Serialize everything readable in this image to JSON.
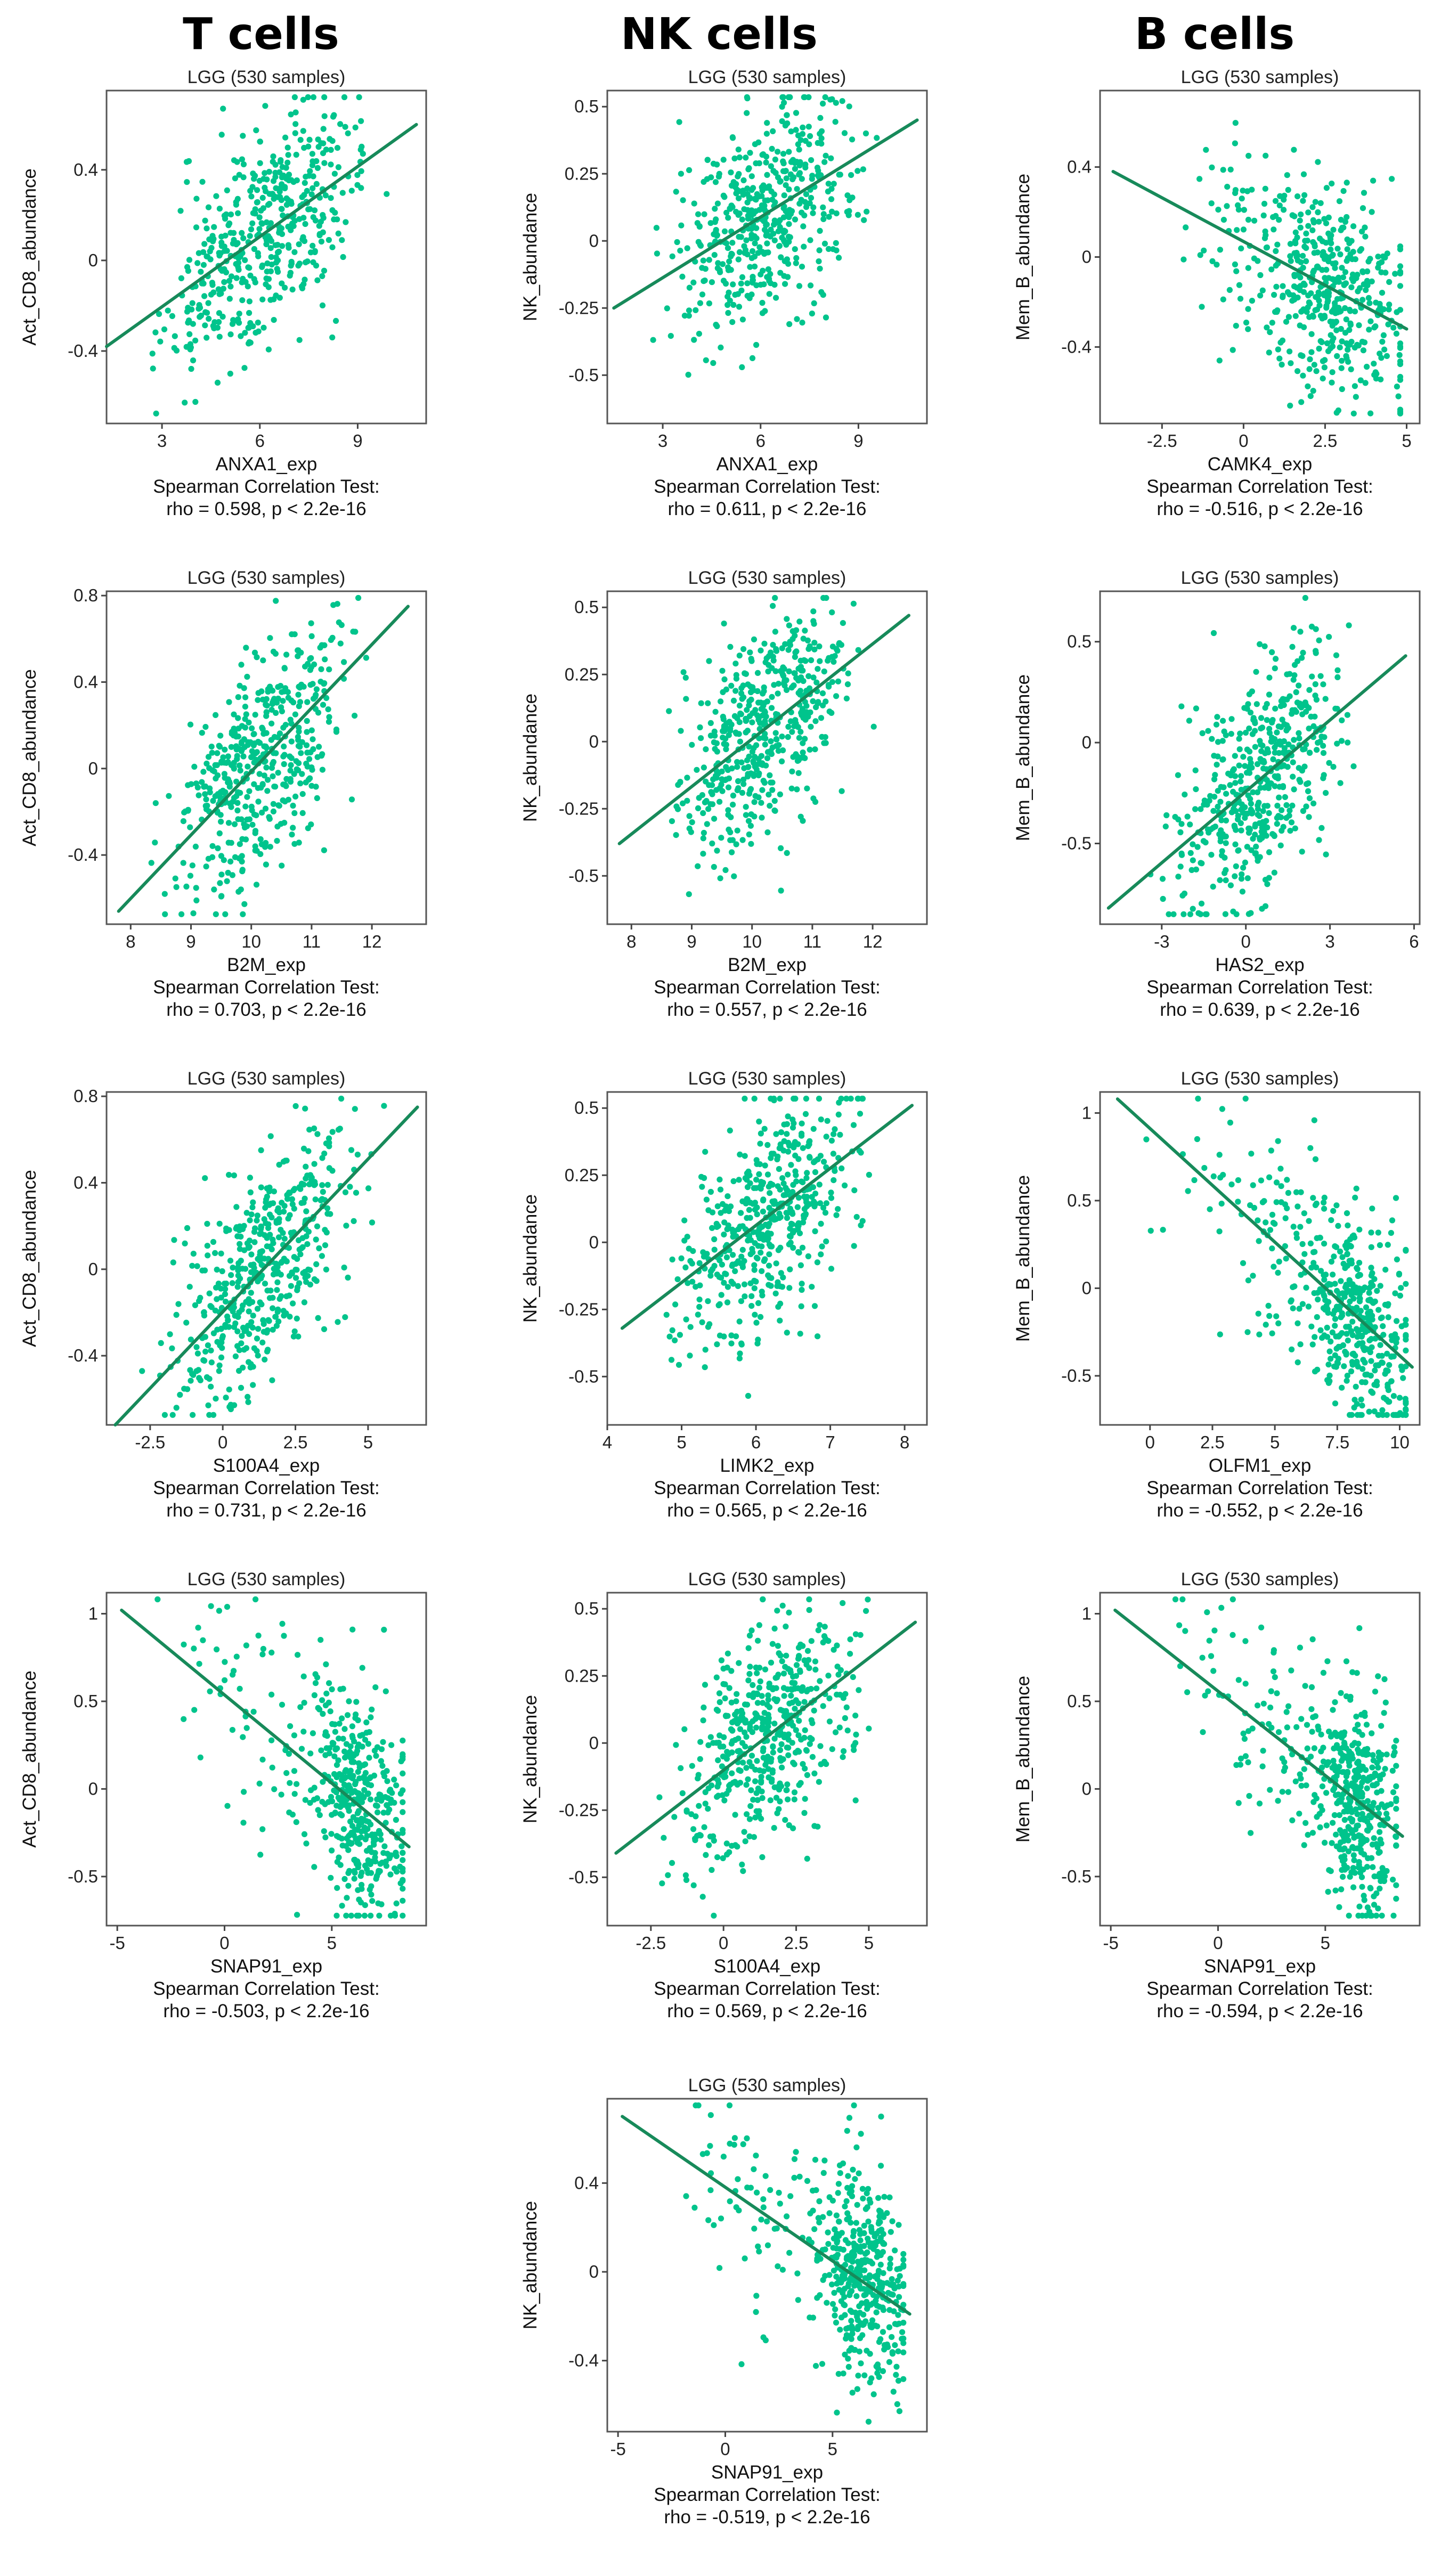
{
  "colors": {
    "point": "#00c48c",
    "line": "#178a5a",
    "frame": "#555555"
  },
  "headers": {
    "t": "T cells",
    "nk": "NK cells",
    "b": "B cells"
  },
  "stat_title": "Spearman Correlation Test:",
  "chart_data": [
    {
      "id": "t1",
      "type": "scatter",
      "title": "LGG (530 samples)",
      "xlabel": "ANXA1_exp",
      "ylabel": "Act_CD8_abundance",
      "xlim": [
        1.3,
        11.1
      ],
      "ylim": [
        -0.72,
        0.75
      ],
      "xticks": [
        3,
        6,
        9
      ],
      "yticks": [
        -0.4,
        0.0,
        0.4
      ],
      "fit": [
        [
          1.3,
          -0.38
        ],
        [
          10.8,
          0.6
        ]
      ],
      "n": 480,
      "seed": 11,
      "stat": "rho = 0.598, p < 2.2e-16"
    },
    {
      "id": "nk1",
      "type": "scatter",
      "title": "LGG (530 samples)",
      "xlabel": "ANXA1_exp",
      "ylabel": "NK_abundance",
      "xlim": [
        1.3,
        11.1
      ],
      "ylim": [
        -0.68,
        0.56
      ],
      "xticks": [
        3,
        6,
        9
      ],
      "yticks": [
        -0.5,
        -0.25,
        0.0,
        0.25,
        0.5
      ],
      "fit": [
        [
          1.5,
          -0.25
        ],
        [
          10.8,
          0.45
        ]
      ],
      "n": 480,
      "seed": 12,
      "stat": "rho = 0.611, p < 2.2e-16"
    },
    {
      "id": "b1",
      "type": "scatter",
      "title": "LGG (530 samples)",
      "xlabel": "CAMK4_exp",
      "ylabel": "Mem_B_abundance",
      "xlim": [
        -4.4,
        5.4
      ],
      "ylim": [
        -0.74,
        0.74
      ],
      "xticks": [
        -2.5,
        0.0,
        2.5,
        5.0
      ],
      "yticks": [
        -0.4,
        0.0,
        0.4
      ],
      "fit": [
        [
          -4.0,
          0.38
        ],
        [
          5.0,
          -0.32
        ]
      ],
      "n": 480,
      "seed": 13,
      "stat": "rho = -0.516, p < 2.2e-16"
    },
    {
      "id": "t2",
      "type": "scatter",
      "title": "LGG (530 samples)",
      "xlabel": "B2M_exp",
      "ylabel": "Act_CD8_abundance",
      "xlim": [
        7.6,
        12.9
      ],
      "ylim": [
        -0.72,
        0.82
      ],
      "xticks": [
        8,
        9,
        10,
        11,
        12
      ],
      "yticks": [
        -0.4,
        0.0,
        0.4,
        0.8
      ],
      "fit": [
        [
          7.8,
          -0.66
        ],
        [
          12.6,
          0.75
        ]
      ],
      "n": 480,
      "seed": 21,
      "stat": "rho = 0.703, p < 2.2e-16"
    },
    {
      "id": "nk2",
      "type": "scatter",
      "title": "LGG (530 samples)",
      "xlabel": "B2M_exp",
      "ylabel": "NK_abundance",
      "xlim": [
        7.6,
        12.9
      ],
      "ylim": [
        -0.68,
        0.56
      ],
      "xticks": [
        8,
        9,
        10,
        11,
        12
      ],
      "yticks": [
        -0.5,
        -0.25,
        0.0,
        0.25,
        0.5
      ],
      "fit": [
        [
          7.8,
          -0.38
        ],
        [
          12.6,
          0.47
        ]
      ],
      "n": 480,
      "seed": 22,
      "stat": "rho = 0.557, p < 2.2e-16"
    },
    {
      "id": "b2",
      "type": "scatter",
      "title": "LGG (530 samples)",
      "xlabel": "HAS2_exp",
      "ylabel": "Mem_B_abundance",
      "xlim": [
        -5.2,
        6.2
      ],
      "ylim": [
        -0.9,
        0.75
      ],
      "xticks": [
        -3,
        0,
        3,
        6
      ],
      "yticks": [
        -0.5,
        0.0,
        0.5
      ],
      "fit": [
        [
          -4.9,
          -0.82
        ],
        [
          5.7,
          0.43
        ]
      ],
      "n": 480,
      "seed": 23,
      "stat": "rho = 0.639, p < 2.2e-16"
    },
    {
      "id": "t3",
      "type": "scatter",
      "title": "LGG (530 samples)",
      "xlabel": "S100A4_exp",
      "ylabel": "Act_CD8_abundance",
      "xlim": [
        -4.0,
        7.0
      ],
      "ylim": [
        -0.72,
        0.82
      ],
      "xticks": [
        -2.5,
        0.0,
        2.5,
        5.0
      ],
      "yticks": [
        -0.4,
        0.0,
        0.4,
        0.8
      ],
      "fit": [
        [
          -3.7,
          -0.72
        ],
        [
          6.7,
          0.75
        ]
      ],
      "n": 480,
      "seed": 31,
      "stat": "rho = 0.731, p < 2.2e-16"
    },
    {
      "id": "nk3",
      "type": "scatter",
      "title": "LGG (530 samples)",
      "xlabel": "LIMK2_exp",
      "ylabel": "NK_abundance",
      "xlim": [
        4.0,
        8.3
      ],
      "ylim": [
        -0.68,
        0.56
      ],
      "xticks": [
        4,
        5,
        6,
        7,
        8
      ],
      "yticks": [
        -0.5,
        -0.25,
        0.0,
        0.25,
        0.5
      ],
      "fit": [
        [
          4.2,
          -0.32
        ],
        [
          8.1,
          0.51
        ]
      ],
      "n": 480,
      "seed": 32,
      "stat": "rho = 0.565, p < 2.2e-16"
    },
    {
      "id": "b3",
      "type": "scatter",
      "title": "LGG (530 samples)",
      "xlabel": "OLFM1_exp",
      "ylabel": "Mem_B_abundance",
      "xlim": [
        -2.0,
        10.8
      ],
      "ylim": [
        -0.78,
        1.12
      ],
      "xticks": [
        0.0,
        2.5,
        5.0,
        7.5,
        10.0
      ],
      "yticks": [
        -0.5,
        0.0,
        0.5,
        1.0
      ],
      "fit": [
        [
          -1.3,
          1.08
        ],
        [
          10.5,
          -0.45
        ]
      ],
      "n": 480,
      "seed": 33,
      "stat": "rho = -0.552, p < 2.2e-16"
    },
    {
      "id": "t4",
      "type": "scatter",
      "title": "LGG (530 samples)",
      "xlabel": "SNAP91_exp",
      "ylabel": "Act_CD8_abundance",
      "xlim": [
        -5.5,
        9.4
      ],
      "ylim": [
        -0.78,
        1.12
      ],
      "xticks": [
        -5,
        0,
        5
      ],
      "yticks": [
        -0.5,
        0.0,
        0.5,
        1.0
      ],
      "fit": [
        [
          -4.8,
          1.02
        ],
        [
          8.6,
          -0.33
        ]
      ],
      "n": 480,
      "seed": 41,
      "stat": "rho = -0.503, p < 2.2e-16"
    },
    {
      "id": "nk4",
      "type": "scatter",
      "title": "LGG (530 samples)",
      "xlabel": "S100A4_exp",
      "ylabel": "NK_abundance",
      "xlim": [
        -4.0,
        7.0
      ],
      "ylim": [
        -0.68,
        0.56
      ],
      "xticks": [
        -2.5,
        0.0,
        2.5,
        5.0
      ],
      "yticks": [
        -0.5,
        -0.25,
        0.0,
        0.25,
        0.5
      ],
      "fit": [
        [
          -3.7,
          -0.41
        ],
        [
          6.6,
          0.45
        ]
      ],
      "n": 480,
      "seed": 42,
      "stat": "rho = 0.569, p < 2.2e-16"
    },
    {
      "id": "b4",
      "type": "scatter",
      "title": "LGG (530 samples)",
      "xlabel": "SNAP91_exp",
      "ylabel": "Mem_B_abundance",
      "xlim": [
        -5.5,
        9.4
      ],
      "ylim": [
        -0.78,
        1.12
      ],
      "xticks": [
        -5,
        0,
        5
      ],
      "yticks": [
        -0.5,
        0.0,
        0.5,
        1.0
      ],
      "fit": [
        [
          -4.8,
          1.02
        ],
        [
          8.6,
          -0.27
        ]
      ],
      "n": 480,
      "seed": 43,
      "stat": "rho = -0.594, p < 2.2e-16"
    },
    {
      "id": "nk5",
      "type": "scatter",
      "title": "LGG (530 samples)",
      "xlabel": "SNAP91_exp",
      "ylabel": "NK_abundance",
      "xlim": [
        -5.5,
        9.4
      ],
      "ylim": [
        -0.72,
        0.78
      ],
      "xticks": [
        -5,
        0,
        5
      ],
      "yticks": [
        -0.4,
        0.0,
        0.4
      ],
      "fit": [
        [
          -4.8,
          0.7
        ],
        [
          8.6,
          -0.19
        ]
      ],
      "n": 480,
      "seed": 52,
      "stat": "rho = -0.519, p < 2.2e-16"
    }
  ]
}
